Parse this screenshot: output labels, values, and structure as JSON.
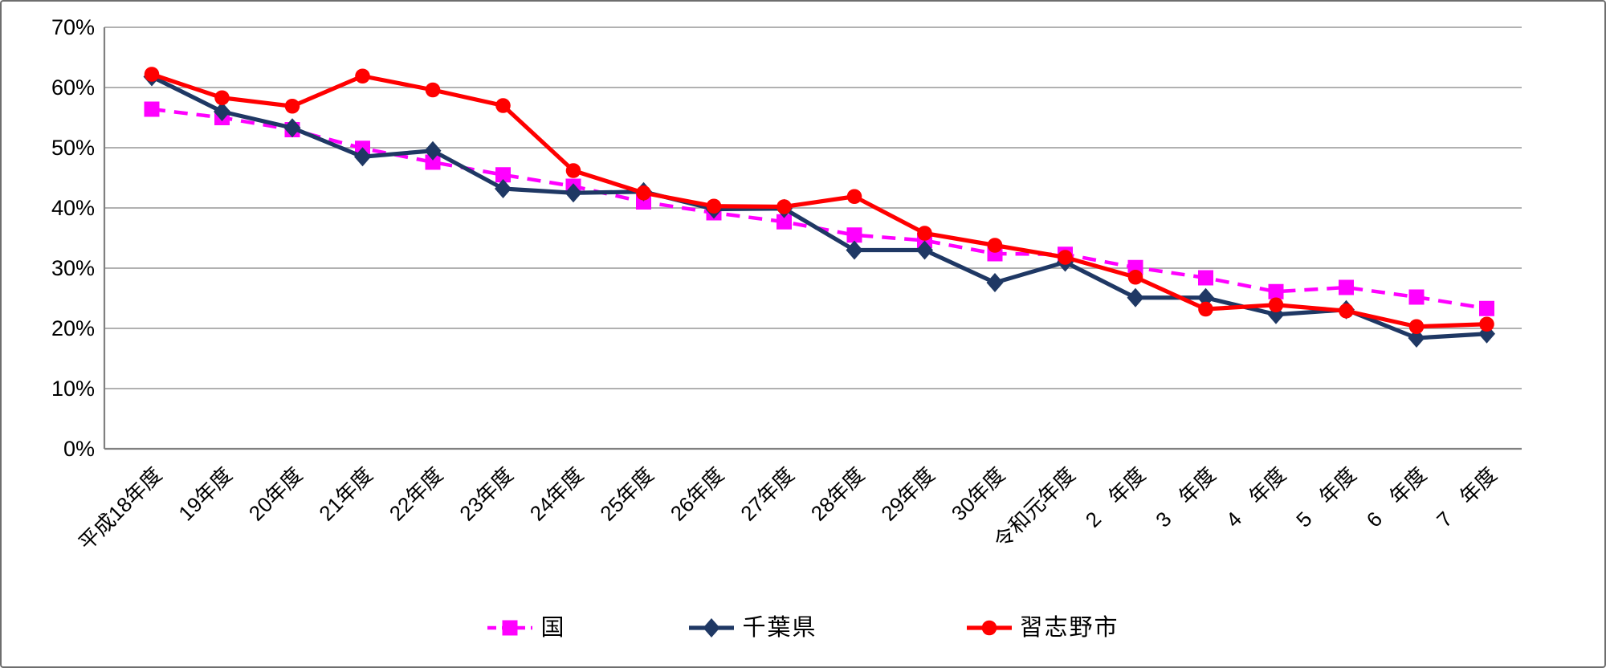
{
  "chart_data": {
    "type": "line",
    "title": "",
    "xlabel": "",
    "ylabel": "",
    "categories": [
      "平成18年度",
      "19年度",
      "20年度",
      "21年度",
      "22年度",
      "23年度",
      "24年度",
      "25年度",
      "26年度",
      "27年度",
      "28年度",
      "29年度",
      "30年度",
      "令和元年度",
      "2　年度",
      "3　年度",
      "4　年度",
      "5　年度",
      "6　年度",
      "7　年度"
    ],
    "series": [
      {
        "id": "kuni",
        "name": "国",
        "color": "#FF00FF",
        "line_style": "dashed",
        "marker": "square",
        "values": [
          56.4,
          55.0,
          53.0,
          49.9,
          47.6,
          45.5,
          43.6,
          41.0,
          39.2,
          37.7,
          35.5,
          34.6,
          32.4,
          32.3,
          30.1,
          28.4,
          26.1,
          26.8,
          25.2,
          23.3
        ]
      },
      {
        "id": "chiba",
        "name": "千葉県",
        "color": "#1F3864",
        "line_style": "solid",
        "marker": "diamond",
        "values": [
          61.8,
          56.0,
          53.3,
          48.5,
          49.5,
          43.2,
          42.5,
          42.7,
          39.8,
          39.9,
          33.0,
          33.0,
          27.6,
          31.0,
          25.1,
          25.1,
          22.3,
          23.1,
          18.4,
          19.1
        ]
      },
      {
        "id": "narashino",
        "name": "習志野市",
        "color": "#FF0000",
        "line_style": "solid",
        "marker": "circle",
        "values": [
          62.2,
          58.3,
          56.9,
          61.9,
          59.6,
          57.0,
          46.2,
          42.5,
          40.3,
          40.2,
          41.9,
          35.8,
          33.8,
          31.8,
          28.5,
          23.2,
          23.9,
          22.9,
          20.3,
          20.7
        ]
      }
    ],
    "y_axis": {
      "min": 0,
      "max": 70,
      "step": 10,
      "tick_labels": [
        "0%",
        "10%",
        "20%",
        "30%",
        "40%",
        "50%",
        "60%",
        "70%"
      ]
    },
    "grid": true,
    "legend_position": "bottom"
  },
  "colors": {
    "gridline": "#A6A6A6",
    "axis": "#808080",
    "text": "#000000",
    "background": "#FFFFFF"
  }
}
